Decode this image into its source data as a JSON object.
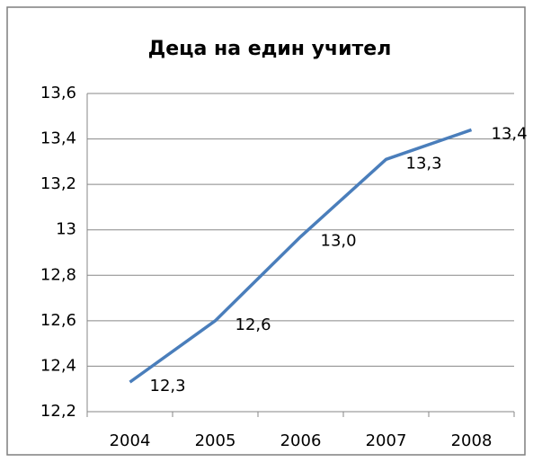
{
  "chart_data": {
    "type": "line",
    "title": "Деца на един учител",
    "categories": [
      "2004",
      "2005",
      "2006",
      "2007",
      "2008"
    ],
    "series": [
      {
        "color": "#4a7ebb",
        "values": [
          12.33,
          12.6,
          12.97,
          13.31,
          13.44
        ],
        "value_labels": [
          "12,3",
          "12,6",
          "13,0",
          "13,3",
          "13,4"
        ]
      }
    ],
    "ylim": [
      12.2,
      13.6
    ],
    "yticks": [
      {
        "value": 12.2,
        "label": "12,2"
      },
      {
        "value": 12.4,
        "label": "12,4"
      },
      {
        "value": 12.6,
        "label": "12,6"
      },
      {
        "value": 12.8,
        "label": "12,8"
      },
      13,
      {
        "value": 13.2,
        "label": "13,2"
      },
      {
        "value": 13.4,
        "label": "13,4"
      },
      {
        "value": 13.6,
        "label": "13,6"
      }
    ],
    "grid": true
  }
}
